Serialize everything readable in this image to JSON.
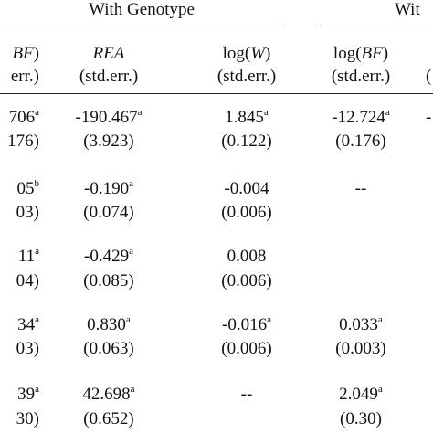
{
  "header": {
    "group_left": "With Genotype",
    "group_right": "Wit"
  },
  "columns": {
    "col0": {
      "pre": "",
      "var": "BF",
      "post": ")",
      "std": "err.)"
    },
    "col1": {
      "var": "REA",
      "std": "(std.err.)"
    },
    "col2": {
      "pre": "log(",
      "var": "W",
      "post": ")",
      "std": "(std.err.)"
    },
    "col3": {
      "pre": "log(",
      "var": "BF",
      "post": ")",
      "std": "(std.err.)"
    },
    "col4_fragment": "("
  },
  "rows": [
    {
      "c0": "706",
      "c0_sup": "a",
      "c0_se": "176)",
      "c1": "-190.467",
      "c1_sup": "a",
      "c1_se": "(3.923)",
      "c2": "1.845",
      "c2_sup": "a",
      "c2_se": "(0.122)",
      "c3": "-12.724",
      "c3_sup": "a",
      "c3_se": "(0.176)",
      "c4": "-"
    },
    {
      "c0": "05",
      "c0_sup": "b",
      "c0_se": "03)",
      "c1": "-0.190",
      "c1_sup": "a",
      "c1_se": "(0.074)",
      "c2": "-0.004",
      "c2_sup": "",
      "c2_se": "(0.006)",
      "c3": "--",
      "c3_sup": "",
      "c3_se": "",
      "c4": ""
    },
    {
      "c0": "11",
      "c0_sup": "a",
      "c0_se": "04)",
      "c1": "-0.429",
      "c1_sup": "a",
      "c1_se": "(0.085)",
      "c2": "0.008",
      "c2_sup": "",
      "c2_se": "(0.006)",
      "c3": "",
      "c3_sup": "",
      "c3_se": "",
      "c4": ""
    },
    {
      "c0": "34",
      "c0_sup": "a",
      "c0_se": "03)",
      "c1": "0.830",
      "c1_sup": "a",
      "c1_se": "(0.063)",
      "c2": "-0.016",
      "c2_sup": "a",
      "c2_se": "(0.006)",
      "c3": "0.033",
      "c3_sup": "a",
      "c3_se": "(0.003)",
      "c4": ""
    },
    {
      "c0": "39",
      "c0_sup": "a",
      "c0_se": "30)",
      "c1": "42.698",
      "c1_sup": "a",
      "c1_se": "(0.652)",
      "c2": "--",
      "c2_sup": "",
      "c2_se": "",
      "c3": "2.049",
      "c3_sup": "a",
      "c3_se": "(0.30)",
      "c4": ""
    }
  ]
}
